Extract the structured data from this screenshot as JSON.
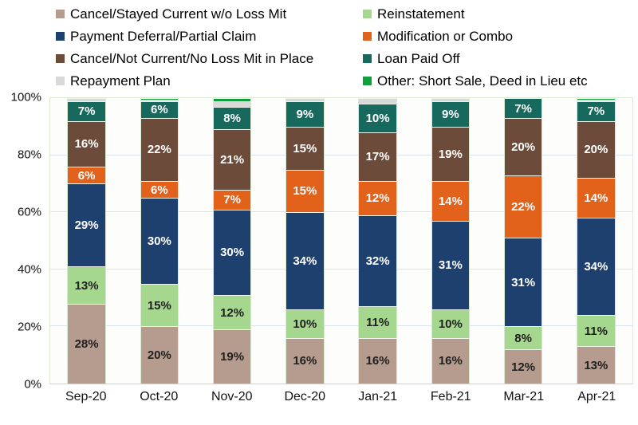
{
  "chart_data": {
    "type": "bar",
    "stacked": true,
    "title": "",
    "xlabel": "",
    "ylabel": "",
    "ylim": [
      0,
      100
    ],
    "grid": true,
    "legend_position": "top",
    "label_suffix": "%",
    "label_threshold": 6,
    "categories": [
      "Sep-20",
      "Oct-20",
      "Nov-20",
      "Dec-20",
      "Jan-21",
      "Feb-21",
      "Mar-21",
      "Apr-21"
    ],
    "y_ticks": [
      {
        "value": 0,
        "label": "0%"
      },
      {
        "value": 20,
        "label": "20%"
      },
      {
        "value": 40,
        "label": "40%"
      },
      {
        "value": 60,
        "label": "60%"
      },
      {
        "value": 80,
        "label": "80%"
      },
      {
        "value": 100,
        "label": "100%"
      }
    ],
    "series": [
      {
        "name": "Cancel/Stayed Current w/o Loss Mit",
        "color": "#B69C8F",
        "text_color": "#202020",
        "values": [
          28,
          20,
          19,
          16,
          16,
          16,
          12,
          13
        ]
      },
      {
        "name": "Reinstatement",
        "color": "#A6D78E",
        "text_color": "#202020",
        "values": [
          13,
          15,
          12,
          10,
          11,
          10,
          8,
          11
        ]
      },
      {
        "name": "Payment Deferral/Partial Claim",
        "color": "#1E406E",
        "text_color": "#FFFFFF",
        "values": [
          29,
          30,
          30,
          34,
          32,
          31,
          31,
          34
        ]
      },
      {
        "name": "Modification or Combo",
        "color": "#E2611B",
        "text_color": "#FFFFFF",
        "values": [
          6,
          6,
          7,
          15,
          12,
          14,
          22,
          14
        ]
      },
      {
        "name": "Cancel/Not Current/No Loss Mit in Place",
        "color": "#6C4B3A",
        "text_color": "#FFFFFF",
        "values": [
          16,
          22,
          21,
          15,
          17,
          19,
          20,
          20
        ]
      },
      {
        "name": "Loan Paid Off",
        "color": "#17695E",
        "text_color": "#FFFFFF",
        "values": [
          7,
          6,
          8,
          9,
          10,
          9,
          7,
          7
        ]
      },
      {
        "name": "Repayment Plan",
        "color": "#D9D9D9",
        "text_color": "#202020",
        "values": [
          1,
          0.5,
          2,
          1,
          2,
          1,
          0,
          0.5
        ]
      },
      {
        "name": "Other: Short Sale, Deed in Lieu etc",
        "color": "#0EA13B",
        "text_color": "#FFFFFF",
        "values": [
          0,
          0.5,
          1,
          0,
          0,
          0,
          0,
          0.5
        ]
      }
    ]
  }
}
